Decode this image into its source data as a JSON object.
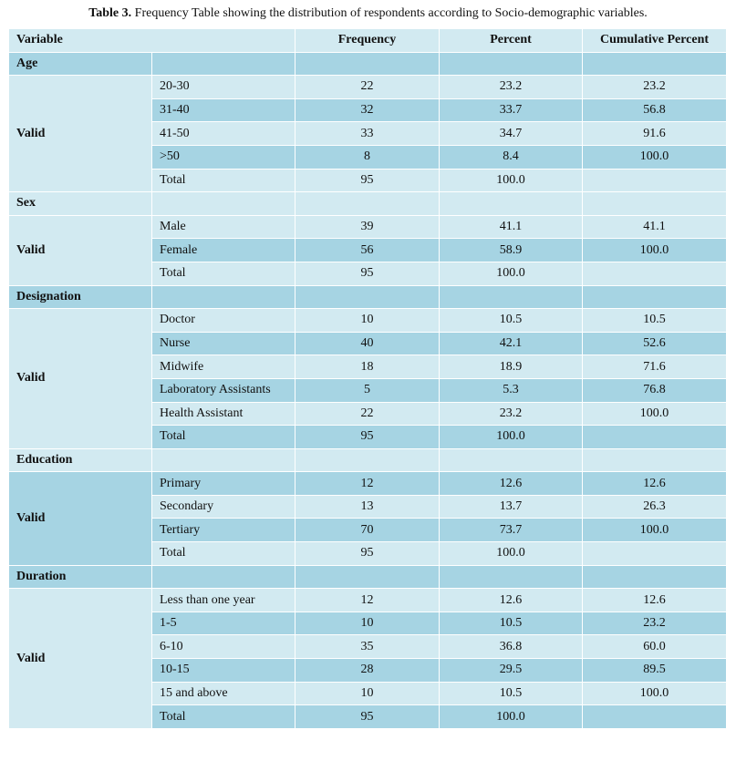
{
  "caption": {
    "label": "Table 3.",
    "text": "Frequency Table showing the distribution of respondents according to Socio-demographic variables."
  },
  "header": {
    "variable": "Variable",
    "frequency": "Frequency",
    "percent": "Percent",
    "cumulative": "Cumulative Percent"
  },
  "valid_label": "Valid",
  "sections": [
    {
      "title": "Age",
      "rows": [
        {
          "label": "20-30",
          "frequency": "22",
          "percent": "23.2",
          "cumulative": "23.2"
        },
        {
          "label": "31-40",
          "frequency": "32",
          "percent": "33.7",
          "cumulative": "56.8"
        },
        {
          "label": "41-50",
          "frequency": "33",
          "percent": "34.7",
          "cumulative": "91.6"
        },
        {
          "label": ">50",
          "frequency": "8",
          "percent": "8.4",
          "cumulative": "100.0"
        },
        {
          "label": "Total",
          "frequency": "95",
          "percent": "100.0",
          "cumulative": ""
        }
      ]
    },
    {
      "title": "Sex",
      "rows": [
        {
          "label": "Male",
          "frequency": "39",
          "percent": "41.1",
          "cumulative": "41.1"
        },
        {
          "label": "Female",
          "frequency": "56",
          "percent": "58.9",
          "cumulative": "100.0"
        },
        {
          "label": "Total",
          "frequency": "95",
          "percent": "100.0",
          "cumulative": ""
        }
      ]
    },
    {
      "title": "Designation",
      "rows": [
        {
          "label": "Doctor",
          "frequency": "10",
          "percent": "10.5",
          "cumulative": "10.5"
        },
        {
          "label": "Nurse",
          "frequency": "40",
          "percent": "42.1",
          "cumulative": "52.6"
        },
        {
          "label": "Midwife",
          "frequency": "18",
          "percent": "18.9",
          "cumulative": "71.6"
        },
        {
          "label": "Laboratory Assistants",
          "frequency": "5",
          "percent": "5.3",
          "cumulative": "76.8"
        },
        {
          "label": "Health Assistant",
          "frequency": "22",
          "percent": "23.2",
          "cumulative": "100.0"
        },
        {
          "label": "Total",
          "frequency": "95",
          "percent": "100.0",
          "cumulative": ""
        }
      ]
    },
    {
      "title": "Education",
      "rows": [
        {
          "label": "Primary",
          "frequency": "12",
          "percent": "12.6",
          "cumulative": "12.6"
        },
        {
          "label": "Secondary",
          "frequency": "13",
          "percent": "13.7",
          "cumulative": "26.3"
        },
        {
          "label": "Tertiary",
          "frequency": "70",
          "percent": "73.7",
          "cumulative": "100.0"
        },
        {
          "label": "Total",
          "frequency": "95",
          "percent": "100.0",
          "cumulative": ""
        }
      ]
    },
    {
      "title": "Duration",
      "rows": [
        {
          "label": "Less than one year",
          "frequency": "12",
          "percent": "12.6",
          "cumulative": "12.6"
        },
        {
          "label": "1-5",
          "frequency": "10",
          "percent": "10.5",
          "cumulative": "23.2"
        },
        {
          "label": "6-10",
          "frequency": "35",
          "percent": "36.8",
          "cumulative": "60.0"
        },
        {
          "label": "10-15",
          "frequency": "28",
          "percent": "29.5",
          "cumulative": "89.5"
        },
        {
          "label": "15 and above",
          "frequency": "10",
          "percent": "10.5",
          "cumulative": "100.0"
        },
        {
          "label": "Total",
          "frequency": "95",
          "percent": "100.0",
          "cumulative": ""
        }
      ]
    }
  ]
}
